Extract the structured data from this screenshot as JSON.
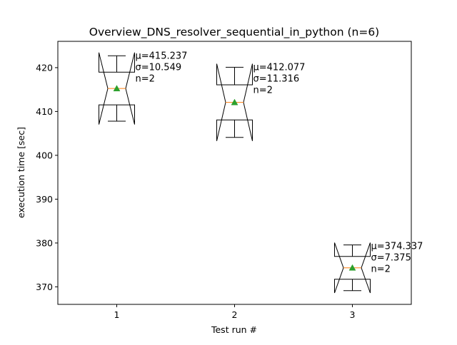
{
  "chart_data": {
    "type": "boxplot",
    "title": "Overview_DNS_resolver_sequential_in_python (n=6)",
    "xlabel": "Test run #",
    "ylabel": "execution time [sec]",
    "ylim": [
      366,
      426
    ],
    "xlim": [
      0.5,
      3.5
    ],
    "yticks": [
      370,
      380,
      390,
      400,
      410,
      420
    ],
    "xticks": [
      1,
      2,
      3
    ],
    "notched": true,
    "show_means": true,
    "colors": {
      "box": "#000000",
      "median": "#ff7f0e",
      "mean_marker": "#2ca02c"
    },
    "boxes": [
      {
        "position": 1,
        "whisker_low": 407.78,
        "q1": 411.51,
        "median": 415.24,
        "q3": 418.97,
        "whisker_high": 422.7,
        "notch_low": 407.04,
        "notch_high": 423.44,
        "mean": 415.237,
        "annotation": [
          "μ=415.237",
          "σ=10.549",
          "n=2"
        ]
      },
      {
        "position": 2,
        "whisker_low": 404.08,
        "q1": 408.08,
        "median": 412.08,
        "q3": 416.08,
        "whisker_high": 420.08,
        "notch_low": 403.28,
        "notch_high": 420.87,
        "mean": 412.077,
        "annotation": [
          "μ=412.077",
          "σ=11.316",
          "n=2"
        ]
      },
      {
        "position": 3,
        "whisker_low": 369.12,
        "q1": 371.73,
        "median": 374.34,
        "q3": 376.94,
        "whisker_high": 379.55,
        "notch_low": 368.6,
        "notch_high": 380.07,
        "mean": 374.337,
        "annotation": [
          "μ=374.337",
          "σ=7.375",
          "n=2"
        ]
      }
    ]
  }
}
